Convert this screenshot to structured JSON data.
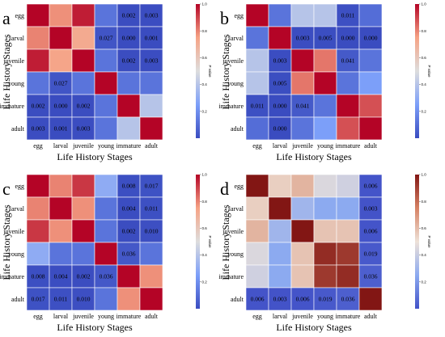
{
  "chart_data": [
    {
      "type": "heatmap",
      "panel_label": "a",
      "categories": [
        "egg",
        "larval",
        "juvenile",
        "young",
        "immature",
        "adult"
      ],
      "xlabel": "Life History Stages",
      "ylabel": "Life History Stages",
      "colorbar_label": "P value",
      "colorbar_ticks": [
        "1.0",
        "0.8",
        "0.6",
        "0.4",
        "0.2"
      ],
      "colorbar_range": [
        0,
        1
      ],
      "colormap": "coolwarm",
      "matrix": [
        [
          1.0,
          0.78,
          0.96,
          0.12,
          0.002,
          0.003
        ],
        [
          0.8,
          1.0,
          0.72,
          0.027,
          0.0,
          0.001
        ],
        [
          0.96,
          0.74,
          1.0,
          0.12,
          0.002,
          0.003
        ],
        [
          0.12,
          0.027,
          0.12,
          1.0,
          0.12,
          0.12
        ],
        [
          0.002,
          0.0,
          0.002,
          0.12,
          1.0,
          0.4
        ],
        [
          0.003,
          0.001,
          0.003,
          0.12,
          0.4,
          1.0
        ]
      ],
      "labels": [
        [
          "",
          "",
          "",
          "",
          "0.002",
          "0.003"
        ],
        [
          "",
          "",
          "",
          "0.027",
          "0.000",
          "0.001"
        ],
        [
          "",
          "",
          "",
          "",
          "0.002",
          "0.003"
        ],
        [
          "",
          "0.027",
          "",
          "",
          "",
          ""
        ],
        [
          "0.002",
          "0.000",
          "0.002",
          "",
          "",
          ""
        ],
        [
          "0.003",
          "0.001",
          "0.003",
          "",
          "",
          ""
        ]
      ]
    },
    {
      "type": "heatmap",
      "panel_label": "b",
      "categories": [
        "egg",
        "larval",
        "juvenile",
        "young",
        "immature",
        "adult"
      ],
      "xlabel": "Life History Stages",
      "ylabel": "Life History Stages",
      "colorbar_label": "P value",
      "colorbar_ticks": [
        "1.0",
        "0.8",
        "0.6",
        "0.4",
        "0.2"
      ],
      "colorbar_range": [
        0,
        1
      ],
      "colormap": "coolwarm",
      "matrix": [
        [
          1.0,
          0.12,
          0.4,
          0.4,
          0.011,
          0.1
        ],
        [
          0.12,
          1.0,
          0.003,
          0.005,
          0.0,
          0.0
        ],
        [
          0.4,
          0.003,
          1.0,
          0.82,
          0.041,
          0.12
        ],
        [
          0.4,
          0.005,
          0.82,
          1.0,
          0.12,
          0.25
        ],
        [
          0.011,
          0.0,
          0.041,
          0.12,
          1.0,
          0.88
        ],
        [
          0.1,
          0.0,
          0.12,
          0.25,
          0.88,
          1.0
        ]
      ],
      "labels": [
        [
          "",
          "",
          "",
          "",
          "0.011",
          ""
        ],
        [
          "",
          "",
          "0.003",
          "0.005",
          "0.000",
          "0.000"
        ],
        [
          "",
          "0.003",
          "",
          "",
          "0.041",
          ""
        ],
        [
          "",
          "0.005",
          "",
          "",
          "",
          ""
        ],
        [
          "0.011",
          "0.000",
          "0.041",
          "",
          "",
          ""
        ],
        [
          "",
          "0.000",
          "",
          "",
          "",
          ""
        ]
      ]
    },
    {
      "type": "heatmap",
      "panel_label": "c",
      "categories": [
        "egg",
        "larval",
        "juvenile",
        "young",
        "immature",
        "adult"
      ],
      "xlabel": "Life History Stages",
      "ylabel": "Life History Stages",
      "colorbar_label": "P value",
      "colorbar_ticks": [
        "1.0",
        "0.8",
        "0.6",
        "0.4",
        "0.2"
      ],
      "colorbar_range": [
        0,
        1
      ],
      "colormap": "coolwarm",
      "matrix": [
        [
          1.0,
          0.8,
          0.92,
          0.3,
          0.008,
          0.017
        ],
        [
          0.8,
          1.0,
          0.78,
          0.12,
          0.004,
          0.011
        ],
        [
          0.92,
          0.78,
          1.0,
          0.12,
          0.002,
          0.01
        ],
        [
          0.3,
          0.12,
          0.12,
          1.0,
          0.036,
          0.12
        ],
        [
          0.008,
          0.004,
          0.002,
          0.036,
          1.0,
          0.78
        ],
        [
          0.017,
          0.011,
          0.01,
          0.12,
          0.78,
          1.0
        ]
      ],
      "labels": [
        [
          "",
          "",
          "",
          "",
          "0.008",
          "0.017"
        ],
        [
          "",
          "",
          "",
          "",
          "0.004",
          "0.011"
        ],
        [
          "",
          "",
          "",
          "",
          "0.002",
          "0.010"
        ],
        [
          "",
          "",
          "",
          "",
          "0.036",
          ""
        ],
        [
          "0.008",
          "0.004",
          "0.002",
          "0.036",
          "",
          ""
        ],
        [
          "0.017",
          "0.011",
          "0.010",
          "",
          "",
          ""
        ]
      ]
    },
    {
      "type": "heatmap",
      "panel_label": "d",
      "categories": [
        "egg",
        "larval",
        "juvenile",
        "young",
        "immature",
        "adult"
      ],
      "xlabel": "Life History Stages",
      "ylabel": "Life History Stages",
      "colorbar_label": "P value",
      "colorbar_ticks": [
        "1.0",
        "0.8",
        "0.6",
        "0.4",
        "0.2"
      ],
      "colorbar_range": [
        0,
        1
      ],
      "colormap": "bluered-brown",
      "matrix": [
        [
          1.0,
          0.55,
          0.62,
          0.45,
          0.42,
          0.006
        ],
        [
          0.55,
          1.0,
          0.3,
          0.25,
          0.25,
          0.003
        ],
        [
          0.62,
          0.3,
          1.0,
          0.58,
          0.58,
          0.006
        ],
        [
          0.45,
          0.25,
          0.58,
          0.95,
          0.92,
          0.019
        ],
        [
          0.42,
          0.25,
          0.58,
          0.92,
          0.95,
          0.036
        ],
        [
          0.006,
          0.003,
          0.006,
          0.019,
          0.036,
          1.0
        ]
      ],
      "labels": [
        [
          "",
          "",
          "",
          "",
          "",
          "0.006"
        ],
        [
          "",
          "",
          "",
          "",
          "",
          "0.003"
        ],
        [
          "",
          "",
          "",
          "",
          "",
          "0.006"
        ],
        [
          "",
          "",
          "",
          "",
          "",
          "0.019"
        ],
        [
          "",
          "",
          "",
          "",
          "",
          "0.036"
        ],
        [
          "0.006",
          "0.003",
          "0.006",
          "0.019",
          "0.036",
          ""
        ]
      ]
    }
  ]
}
